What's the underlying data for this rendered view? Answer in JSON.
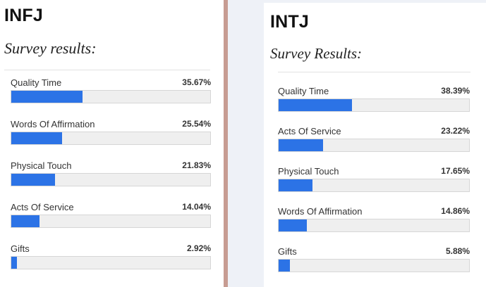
{
  "panels": [
    {
      "title": "INFJ",
      "subtitle": "Survey results:",
      "items": [
        {
          "label": "Quality Time",
          "percent": "35.67%",
          "value": 35.67
        },
        {
          "label": "Words Of Affirmation",
          "percent": "25.54%",
          "value": 25.54
        },
        {
          "label": "Physical Touch",
          "percent": "21.83%",
          "value": 21.83
        },
        {
          "label": "Acts Of Service",
          "percent": "14.04%",
          "value": 14.04
        },
        {
          "label": "Gifts",
          "percent": "2.92%",
          "value": 2.92
        }
      ]
    },
    {
      "title": "INTJ",
      "subtitle": "Survey Results:",
      "items": [
        {
          "label": "Quality Time",
          "percent": "38.39%",
          "value": 38.39
        },
        {
          "label": "Acts Of Service",
          "percent": "23.22%",
          "value": 23.22
        },
        {
          "label": "Physical Touch",
          "percent": "17.65%",
          "value": 17.65
        },
        {
          "label": "Words Of Affirmation",
          "percent": "14.86%",
          "value": 14.86
        },
        {
          "label": "Gifts",
          "percent": "5.88%",
          "value": 5.88
        }
      ]
    }
  ],
  "colors": {
    "bar_fill": "#2c73e6",
    "bar_track": "#efefef",
    "divider": "#c79c92",
    "right_background": "#eef1f7"
  }
}
